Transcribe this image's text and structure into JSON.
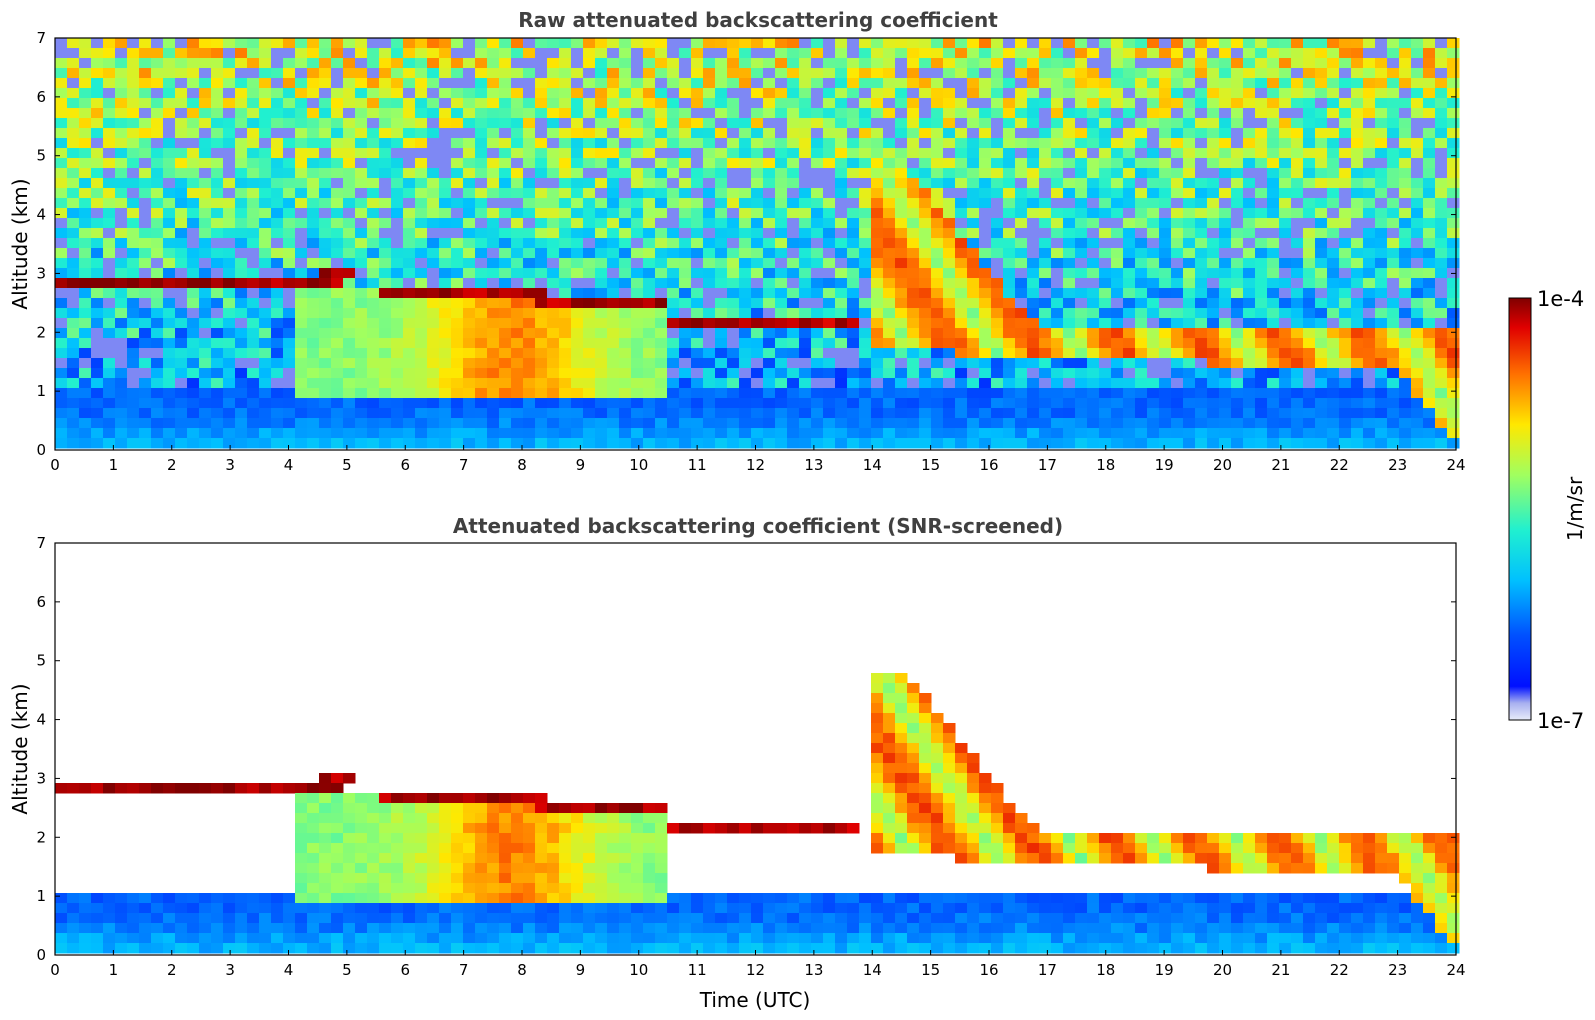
{
  "chart_data": [
    {
      "type": "heatmap",
      "title": "Raw attenuated backscattering coefficient",
      "xlabel": "",
      "ylabel": "Altitude (km)",
      "xlim": [
        0,
        24
      ],
      "ylim": [
        0,
        7
      ],
      "xticks": [
        "0",
        "1",
        "2",
        "3",
        "4",
        "5",
        "6",
        "7",
        "8",
        "9",
        "10",
        "11",
        "12",
        "13",
        "14",
        "15",
        "16",
        "17",
        "18",
        "19",
        "20",
        "21",
        "22",
        "23",
        "24"
      ],
      "yticks": [
        "0",
        "1",
        "2",
        "3",
        "4",
        "5",
        "6",
        "7"
      ],
      "screened": false
    },
    {
      "type": "heatmap",
      "title": "Attenuated backscattering coefficient (SNR-screened)",
      "xlabel": "Time (UTC)",
      "ylabel": "Altitude (km)",
      "xlim": [
        0,
        24
      ],
      "ylim": [
        0,
        7
      ],
      "xticks": [
        "0",
        "1",
        "2",
        "3",
        "4",
        "5",
        "6",
        "7",
        "8",
        "9",
        "10",
        "11",
        "12",
        "13",
        "14",
        "15",
        "16",
        "17",
        "18",
        "19",
        "20",
        "21",
        "22",
        "23",
        "24"
      ],
      "yticks": [
        "0",
        "1",
        "2",
        "3",
        "4",
        "5",
        "6",
        "7"
      ],
      "screened": true
    }
  ],
  "colorbar": {
    "label": "1/m/sr",
    "max_label": "1e-4",
    "min_label": "1e-7",
    "colormap": "jet",
    "scale": "log"
  }
}
